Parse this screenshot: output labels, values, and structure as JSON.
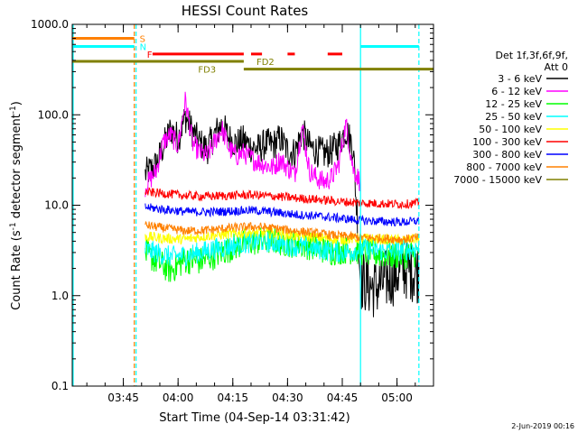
{
  "chart_data": {
    "type": "line",
    "title": "HESSI Count Rates",
    "xlabel": "Start Time (04-Sep-14 03:31:42)",
    "ylabel_parts": [
      "Count Rate (s",
      "-1",
      " detector segment",
      "-1",
      ")"
    ],
    "y_scale": "log",
    "ylim": [
      0.1,
      1000
    ],
    "y_ticks": [
      {
        "value": 0.1,
        "label": "0.1"
      },
      {
        "value": 1,
        "label": "1.0"
      },
      {
        "value": 10,
        "label": "10.0"
      },
      {
        "value": 100,
        "label": "100.0"
      },
      {
        "value": 1000,
        "label": "1000.0"
      }
    ],
    "x_unit": "minutes",
    "xlim": [
      "03:31",
      "05:10"
    ],
    "x_ticks": [
      {
        "value": "03:45",
        "label": "03:45"
      },
      {
        "value": "04:00",
        "label": "04:00"
      },
      {
        "value": "04:15",
        "label": "04:15"
      },
      {
        "value": "04:30",
        "label": "04:30"
      },
      {
        "value": "04:45",
        "label": "04:45"
      },
      {
        "value": "05:00",
        "label": "05:00"
      }
    ],
    "legend_header": [
      "Det 1f,3f,6f,9f,",
      "Att 0"
    ],
    "legend_placement": "right",
    "series": [
      {
        "name": "3 - 6 keV",
        "color": "#000000",
        "points": [
          [
            "03:51",
            22
          ],
          [
            "03:54",
            28
          ],
          [
            "03:56",
            45
          ],
          [
            "03:58",
            70
          ],
          [
            "04:00",
            55
          ],
          [
            "04:02",
            95
          ],
          [
            "04:04",
            65
          ],
          [
            "04:06",
            48
          ],
          [
            "04:08",
            42
          ],
          [
            "04:10",
            60
          ],
          [
            "04:12",
            78
          ],
          [
            "04:14",
            55
          ],
          [
            "04:16",
            48
          ],
          [
            "04:18",
            52
          ],
          [
            "04:20",
            44
          ],
          [
            "04:22",
            42
          ],
          [
            "04:24",
            48
          ],
          [
            "04:26",
            46
          ],
          [
            "04:28",
            55
          ],
          [
            "04:30",
            40
          ],
          [
            "04:32",
            38
          ],
          [
            "04:34",
            65
          ],
          [
            "04:36",
            45
          ],
          [
            "04:38",
            40
          ],
          [
            "04:40",
            37
          ],
          [
            "04:42",
            40
          ],
          [
            "04:44",
            47
          ],
          [
            "04:46",
            68
          ],
          [
            "04:48",
            44
          ],
          [
            "04:50",
            1.5
          ],
          [
            "04:54",
            1.2
          ],
          [
            "04:58",
            1.6
          ],
          [
            "05:02",
            2.0
          ],
          [
            "05:06",
            1.8
          ]
        ]
      },
      {
        "name": "6 - 12 keV",
        "color": "#ff00ff",
        "points": [
          [
            "03:51",
            16
          ],
          [
            "03:54",
            24
          ],
          [
            "03:56",
            50
          ],
          [
            "03:58",
            60
          ],
          [
            "04:00",
            45
          ],
          [
            "04:02",
            145
          ],
          [
            "04:04",
            48
          ],
          [
            "04:06",
            38
          ],
          [
            "04:08",
            35
          ],
          [
            "04:10",
            50
          ],
          [
            "04:12",
            70
          ],
          [
            "04:14",
            42
          ],
          [
            "04:16",
            35
          ],
          [
            "04:18",
            38
          ],
          [
            "04:20",
            33
          ],
          [
            "04:22",
            30
          ],
          [
            "04:24",
            28
          ],
          [
            "04:26",
            26
          ],
          [
            "04:28",
            32
          ],
          [
            "04:30",
            26
          ],
          [
            "04:32",
            22
          ],
          [
            "04:34",
            75
          ],
          [
            "04:36",
            24
          ],
          [
            "04:38",
            20
          ],
          [
            "04:40",
            18
          ],
          [
            "04:42",
            20
          ],
          [
            "04:44",
            28
          ],
          [
            "04:46",
            80
          ],
          [
            "04:48",
            25
          ],
          [
            "04:50",
            18
          ]
        ]
      },
      {
        "name": "12 - 25 keV",
        "color": "#00ff00",
        "points": [
          [
            "03:51",
            3.0
          ],
          [
            "03:54",
            2.4
          ],
          [
            "03:58",
            1.9
          ],
          [
            "04:02",
            2.5
          ],
          [
            "04:06",
            2.4
          ],
          [
            "04:10",
            2.8
          ],
          [
            "04:14",
            3.3
          ],
          [
            "04:18",
            3.8
          ],
          [
            "04:22",
            4.0
          ],
          [
            "04:26",
            4.1
          ],
          [
            "04:30",
            3.8
          ],
          [
            "04:34",
            3.7
          ],
          [
            "04:38",
            3.4
          ],
          [
            "04:42",
            3.1
          ],
          [
            "04:46",
            3.2
          ],
          [
            "04:50",
            3.1
          ],
          [
            "04:54",
            2.9
          ],
          [
            "04:58",
            2.8
          ],
          [
            "05:02",
            2.8
          ],
          [
            "05:06",
            3.0
          ]
        ]
      },
      {
        "name": "25 - 50 keV",
        "color": "#00ffff",
        "points": [
          [
            "03:51",
            3.2
          ],
          [
            "03:54",
            3.0
          ],
          [
            "03:58",
            2.7
          ],
          [
            "04:02",
            2.8
          ],
          [
            "04:06",
            3.0
          ],
          [
            "04:10",
            3.3
          ],
          [
            "04:14",
            3.5
          ],
          [
            "04:18",
            3.8
          ],
          [
            "04:22",
            4.0
          ],
          [
            "04:26",
            3.9
          ],
          [
            "04:30",
            3.6
          ],
          [
            "04:34",
            3.5
          ],
          [
            "04:38",
            3.3
          ],
          [
            "04:42",
            3.1
          ],
          [
            "04:46",
            3.0
          ],
          [
            "04:50",
            3.3
          ],
          [
            "04:54",
            3.2
          ],
          [
            "04:58",
            3.1
          ],
          [
            "05:02",
            3.2
          ],
          [
            "05:06",
            3.4
          ]
        ]
      },
      {
        "name": "50 - 100 keV",
        "color": "#ffff00",
        "points": [
          [
            "03:51",
            4.5
          ],
          [
            "03:56",
            4.3
          ],
          [
            "04:02",
            4.2
          ],
          [
            "04:08",
            4.6
          ],
          [
            "04:14",
            4.8
          ],
          [
            "04:20",
            5.0
          ],
          [
            "04:26",
            4.9
          ],
          [
            "04:32",
            4.6
          ],
          [
            "04:38",
            4.4
          ],
          [
            "04:44",
            4.2
          ],
          [
            "04:50",
            4.3
          ],
          [
            "04:56",
            4.2
          ],
          [
            "05:02",
            4.1
          ],
          [
            "05:06",
            4.3
          ]
        ]
      },
      {
        "name": "100 - 300 keV",
        "color": "#ff0000",
        "points": [
          [
            "03:51",
            14
          ],
          [
            "03:56",
            13.5
          ],
          [
            "04:02",
            12.8
          ],
          [
            "04:08",
            12.5
          ],
          [
            "04:14",
            12.8
          ],
          [
            "04:20",
            13.0
          ],
          [
            "04:26",
            12.6
          ],
          [
            "04:32",
            12.0
          ],
          [
            "04:38",
            11.6
          ],
          [
            "04:44",
            11.0
          ],
          [
            "04:50",
            10.6
          ],
          [
            "04:56",
            10.4
          ],
          [
            "05:02",
            10.3
          ],
          [
            "05:06",
            10.6
          ]
        ]
      },
      {
        "name": "300 - 800 keV",
        "color": "#0000ff",
        "points": [
          [
            "03:51",
            9.5
          ],
          [
            "03:56",
            9.0
          ],
          [
            "04:02",
            8.5
          ],
          [
            "04:08",
            8.4
          ],
          [
            "04:14",
            8.6
          ],
          [
            "04:20",
            8.8
          ],
          [
            "04:26",
            8.4
          ],
          [
            "04:32",
            7.9
          ],
          [
            "04:38",
            7.6
          ],
          [
            "04:44",
            7.2
          ],
          [
            "04:50",
            6.8
          ],
          [
            "04:56",
            6.6
          ],
          [
            "05:02",
            6.5
          ],
          [
            "05:06",
            6.7
          ]
        ]
      },
      {
        "name": "800 - 7000 keV",
        "color": "#ff8000",
        "points": [
          [
            "03:51",
            6.0
          ],
          [
            "03:56",
            5.6
          ],
          [
            "04:02",
            5.2
          ],
          [
            "04:08",
            5.3
          ],
          [
            "04:14",
            5.6
          ],
          [
            "04:20",
            5.8
          ],
          [
            "04:26",
            5.6
          ],
          [
            "04:32",
            5.2
          ],
          [
            "04:38",
            4.9
          ],
          [
            "04:44",
            4.6
          ],
          [
            "04:50",
            4.4
          ],
          [
            "04:56",
            4.3
          ],
          [
            "05:02",
            4.2
          ],
          [
            "05:06",
            4.4
          ]
        ]
      },
      {
        "name": "7000 - 15000 keV",
        "color": "#808000",
        "points": []
      }
    ],
    "vertical_markers": [
      {
        "time": "03:31",
        "color": "#00ffff",
        "style": "solid"
      },
      {
        "time": "03:48",
        "color": "#ff8000",
        "style": "dashed"
      },
      {
        "time": "03:48",
        "color": "#00ffff",
        "style": "dashed"
      },
      {
        "time": "04:50",
        "color": "#00ffff",
        "style": "solid"
      },
      {
        "time": "05:06",
        "color": "#00ffff",
        "style": "dashed"
      }
    ],
    "flag_bars": [
      {
        "label": "S",
        "color": "#ff8000",
        "label_time": "03:48",
        "segments": [
          [
            "03:31",
            "03:48"
          ]
        ],
        "value": 700
      },
      {
        "label": "N",
        "color": "#00ffff",
        "label_time": "03:48",
        "segments": [
          [
            "03:31",
            "03:48"
          ],
          [
            "04:50",
            "05:06"
          ]
        ],
        "value": 570
      },
      {
        "label": "F",
        "color": "#ff0000",
        "label_time": "03:50",
        "segments": [
          [
            "03:53",
            "04:18"
          ],
          [
            "04:20",
            "04:23"
          ],
          [
            "04:30",
            "04:32"
          ],
          [
            "04:41",
            "04:45"
          ]
        ],
        "value": 470
      },
      {
        "label": "FD2",
        "color": "#808000",
        "label_time": "04:20",
        "segments": [
          [
            "03:31",
            "04:18"
          ]
        ],
        "value": 390
      },
      {
        "label": "FD3",
        "color": "#808000",
        "label_time": "04:04",
        "segments": [
          [
            "04:18",
            "05:10"
          ]
        ],
        "value": 320
      }
    ]
  },
  "footer_date": "2-Jun-2019 00:16"
}
